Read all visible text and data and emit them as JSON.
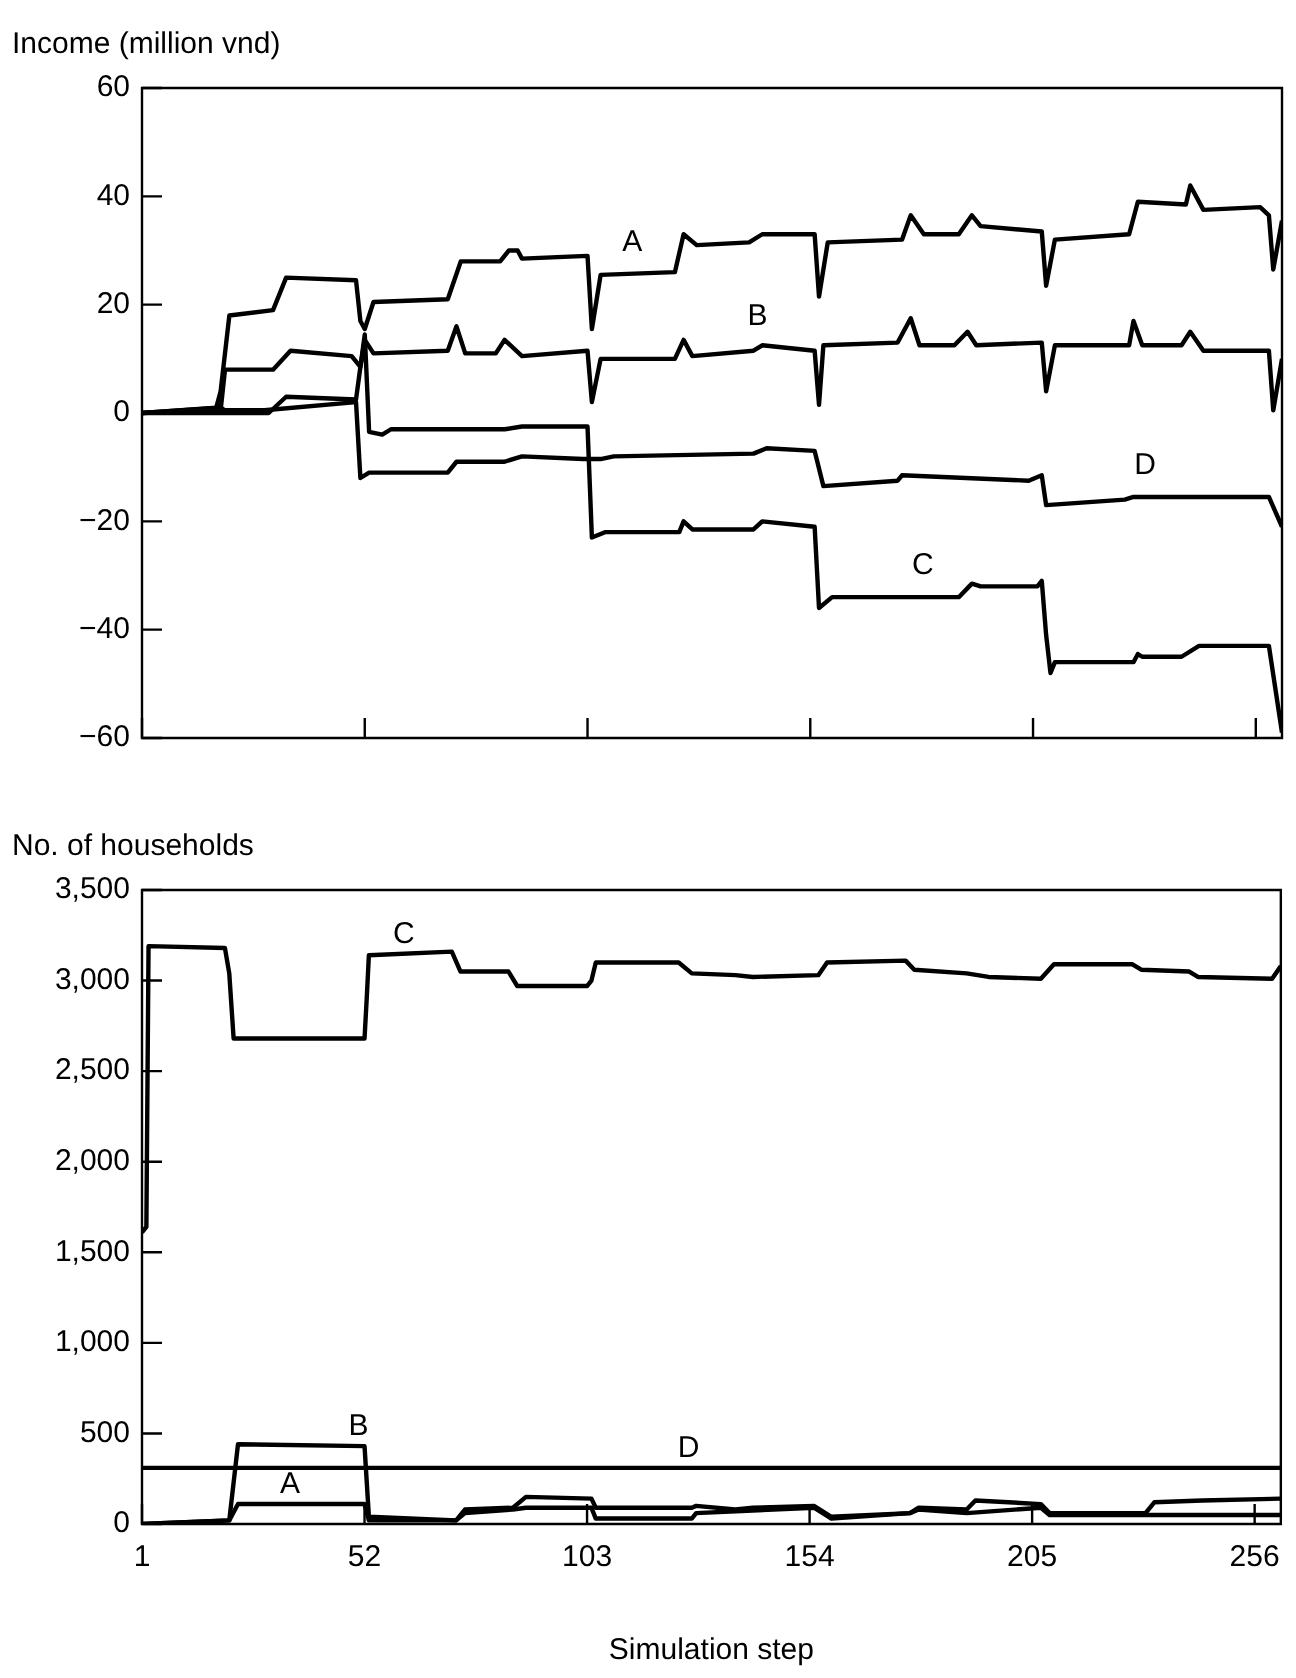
{
  "chart_data": [
    {
      "type": "line",
      "ylabel": "Income (million vnd)",
      "xlim": [
        1,
        262
      ],
      "xticks": [
        {
          "value": 1,
          "label": null
        },
        {
          "value": 52,
          "label": null
        },
        {
          "value": 103,
          "label": null
        },
        {
          "value": 154,
          "label": null
        },
        {
          "value": 205,
          "label": null
        },
        {
          "value": 256,
          "label": null
        }
      ],
      "ylim": [
        -60,
        60
      ],
      "yticks": [
        60,
        40,
        20,
        0,
        {
          "value": -20,
          "label": "−20"
        },
        {
          "value": -40,
          "label": "−40"
        },
        {
          "value": -60,
          "label": "−60"
        }
      ],
      "tick_labels": "y",
      "series": [
        {
          "name": "A",
          "color": "#000000",
          "x": [
            1,
            18,
            19,
            21,
            31,
            34,
            50,
            51,
            52,
            54,
            71,
            74,
            83,
            85,
            87,
            88,
            103,
            104,
            106,
            123,
            125,
            128,
            140,
            143,
            155,
            156,
            158,
            175,
            177,
            180,
            188,
            191,
            193,
            207,
            208,
            210,
            227,
            229,
            240,
            241,
            244,
            257,
            259,
            260,
            262
          ],
          "values": [
            0,
            1,
            4,
            18,
            19,
            25,
            24.5,
            17,
            15.5,
            20.5,
            21,
            28,
            28,
            30,
            30,
            28.5,
            29,
            15.5,
            25.5,
            26,
            33,
            31,
            31.5,
            33,
            33,
            21.5,
            31.5,
            32,
            36.5,
            33,
            33,
            36.5,
            34.5,
            33.5,
            23.5,
            32,
            33,
            39,
            38.5,
            42,
            37.5,
            38,
            36.5,
            26.5,
            35.5
          ]
        },
        {
          "name": "B",
          "color": "#000000",
          "x": [
            1,
            19,
            20,
            31,
            35,
            49,
            51,
            52,
            54,
            71,
            73,
            75,
            82,
            84,
            88,
            103,
            104,
            106,
            123,
            125,
            127,
            141,
            143,
            155,
            156,
            157,
            174,
            177,
            179,
            187,
            190,
            192,
            207,
            208,
            210,
            227,
            228,
            230,
            239,
            241,
            244,
            259,
            260,
            262
          ],
          "values": [
            0,
            0.5,
            8,
            8,
            11.5,
            10.5,
            8.5,
            13.5,
            11,
            11.5,
            16,
            11,
            11,
            13.5,
            10.5,
            11.5,
            2,
            10,
            10,
            13.5,
            10.5,
            11.5,
            12.5,
            11.5,
            1.5,
            12.5,
            13,
            17.5,
            12.5,
            12.5,
            15,
            12.5,
            13,
            4,
            12.5,
            12.5,
            17,
            12.5,
            12.5,
            15,
            11.5,
            11.5,
            0.5,
            10
          ]
        },
        {
          "name": "C",
          "color": "#000000",
          "x": [
            1,
            30,
            34,
            50,
            52,
            53,
            56,
            58,
            84,
            88,
            103,
            104,
            107,
            124,
            125,
            127,
            141,
            143,
            155,
            156,
            159,
            188,
            191,
            193,
            206,
            207,
            208,
            209,
            210,
            228,
            229,
            230,
            239,
            243,
            259,
            262
          ],
          "values": [
            0,
            0,
            3,
            2.5,
            14.5,
            -3.5,
            -4,
            -3,
            -3,
            -2.5,
            -2.5,
            -23,
            -22,
            -22,
            -20,
            -21.5,
            -21.5,
            -20,
            -21,
            -36,
            -34,
            -34,
            -31.5,
            -32,
            -32,
            -31,
            -41,
            -48,
            -46,
            -46,
            -44.5,
            -45,
            -45,
            -43,
            -43,
            -59
          ]
        },
        {
          "name": "D",
          "color": "#000000",
          "x": [
            1,
            19,
            20,
            29,
            50,
            51,
            53,
            71,
            73,
            84,
            88,
            102,
            106,
            109,
            141,
            144,
            155,
            157,
            174,
            175,
            204,
            207,
            208,
            226,
            228,
            259,
            262
          ],
          "values": [
            0,
            1,
            0.5,
            0.5,
            2,
            -12,
            -11,
            -11,
            -9,
            -9,
            -8,
            -8.5,
            -8.5,
            -8,
            -7.5,
            -6.5,
            -7,
            -13.5,
            -12.5,
            -11.5,
            -12.5,
            -11.5,
            -17,
            -16,
            -15.5,
            -15.5,
            -21
          ]
        }
      ]
    },
    {
      "type": "line",
      "ylabel": "No. of households",
      "xlabel": "Simulation step",
      "xlim": [
        1,
        262
      ],
      "xticks": [
        1,
        52,
        103,
        154,
        205,
        256
      ],
      "ylim": [
        0,
        3500
      ],
      "yticks": [
        0,
        500,
        {
          "value": 1000,
          "label": "1,000"
        },
        {
          "value": 1500,
          "label": "1,500"
        },
        {
          "value": 2000,
          "label": "2,000"
        },
        {
          "value": 2500,
          "label": "2,500"
        },
        {
          "value": 3000,
          "label": "3,000"
        },
        {
          "value": 3500,
          "label": "3,500"
        }
      ],
      "series": [
        {
          "name": "C",
          "color": "#000000",
          "x": [
            1,
            2,
            2.5,
            20,
            21,
            22,
            52,
            52.5,
            53,
            72,
            74,
            85,
            87,
            103,
            104,
            105,
            124,
            127,
            137,
            141,
            156,
            158,
            176,
            178,
            190,
            195,
            207,
            210,
            228,
            230,
            241,
            243,
            260,
            262
          ],
          "values": [
            1610,
            1640,
            3190,
            3180,
            3040,
            2680,
            2680,
            2900,
            3140,
            3160,
            3050,
            3050,
            2970,
            2970,
            3000,
            3100,
            3100,
            3040,
            3030,
            3020,
            3030,
            3100,
            3110,
            3060,
            3040,
            3020,
            3010,
            3090,
            3090,
            3060,
            3050,
            3020,
            3010,
            3080
          ]
        },
        {
          "name": "B",
          "color": "#000000",
          "x": [
            1,
            21,
            23,
            52,
            53,
            73,
            75,
            86,
            89,
            104,
            105,
            127,
            128,
            137,
            141,
            155,
            159,
            177,
            179,
            190,
            192,
            207,
            209,
            231,
            233,
            244,
            262
          ],
          "values": [
            0,
            20,
            440,
            430,
            40,
            20,
            80,
            90,
            150,
            140,
            90,
            90,
            100,
            80,
            90,
            100,
            40,
            60,
            90,
            80,
            130,
            110,
            60,
            60,
            120,
            130,
            140
          ]
        },
        {
          "name": "A",
          "color": "#000000",
          "x": [
            1,
            21,
            23,
            52,
            53,
            73,
            75,
            86,
            89,
            104,
            105,
            127,
            128,
            155,
            159,
            177,
            179,
            190,
            207,
            209,
            231,
            262
          ],
          "values": [
            0,
            20,
            110,
            110,
            20,
            20,
            60,
            80,
            90,
            90,
            30,
            30,
            60,
            90,
            30,
            60,
            80,
            60,
            90,
            50,
            50,
            50
          ]
        },
        {
          "name": "D",
          "color": "#000000",
          "x": [
            1,
            262
          ],
          "values": [
            310,
            310
          ]
        }
      ]
    }
  ]
}
